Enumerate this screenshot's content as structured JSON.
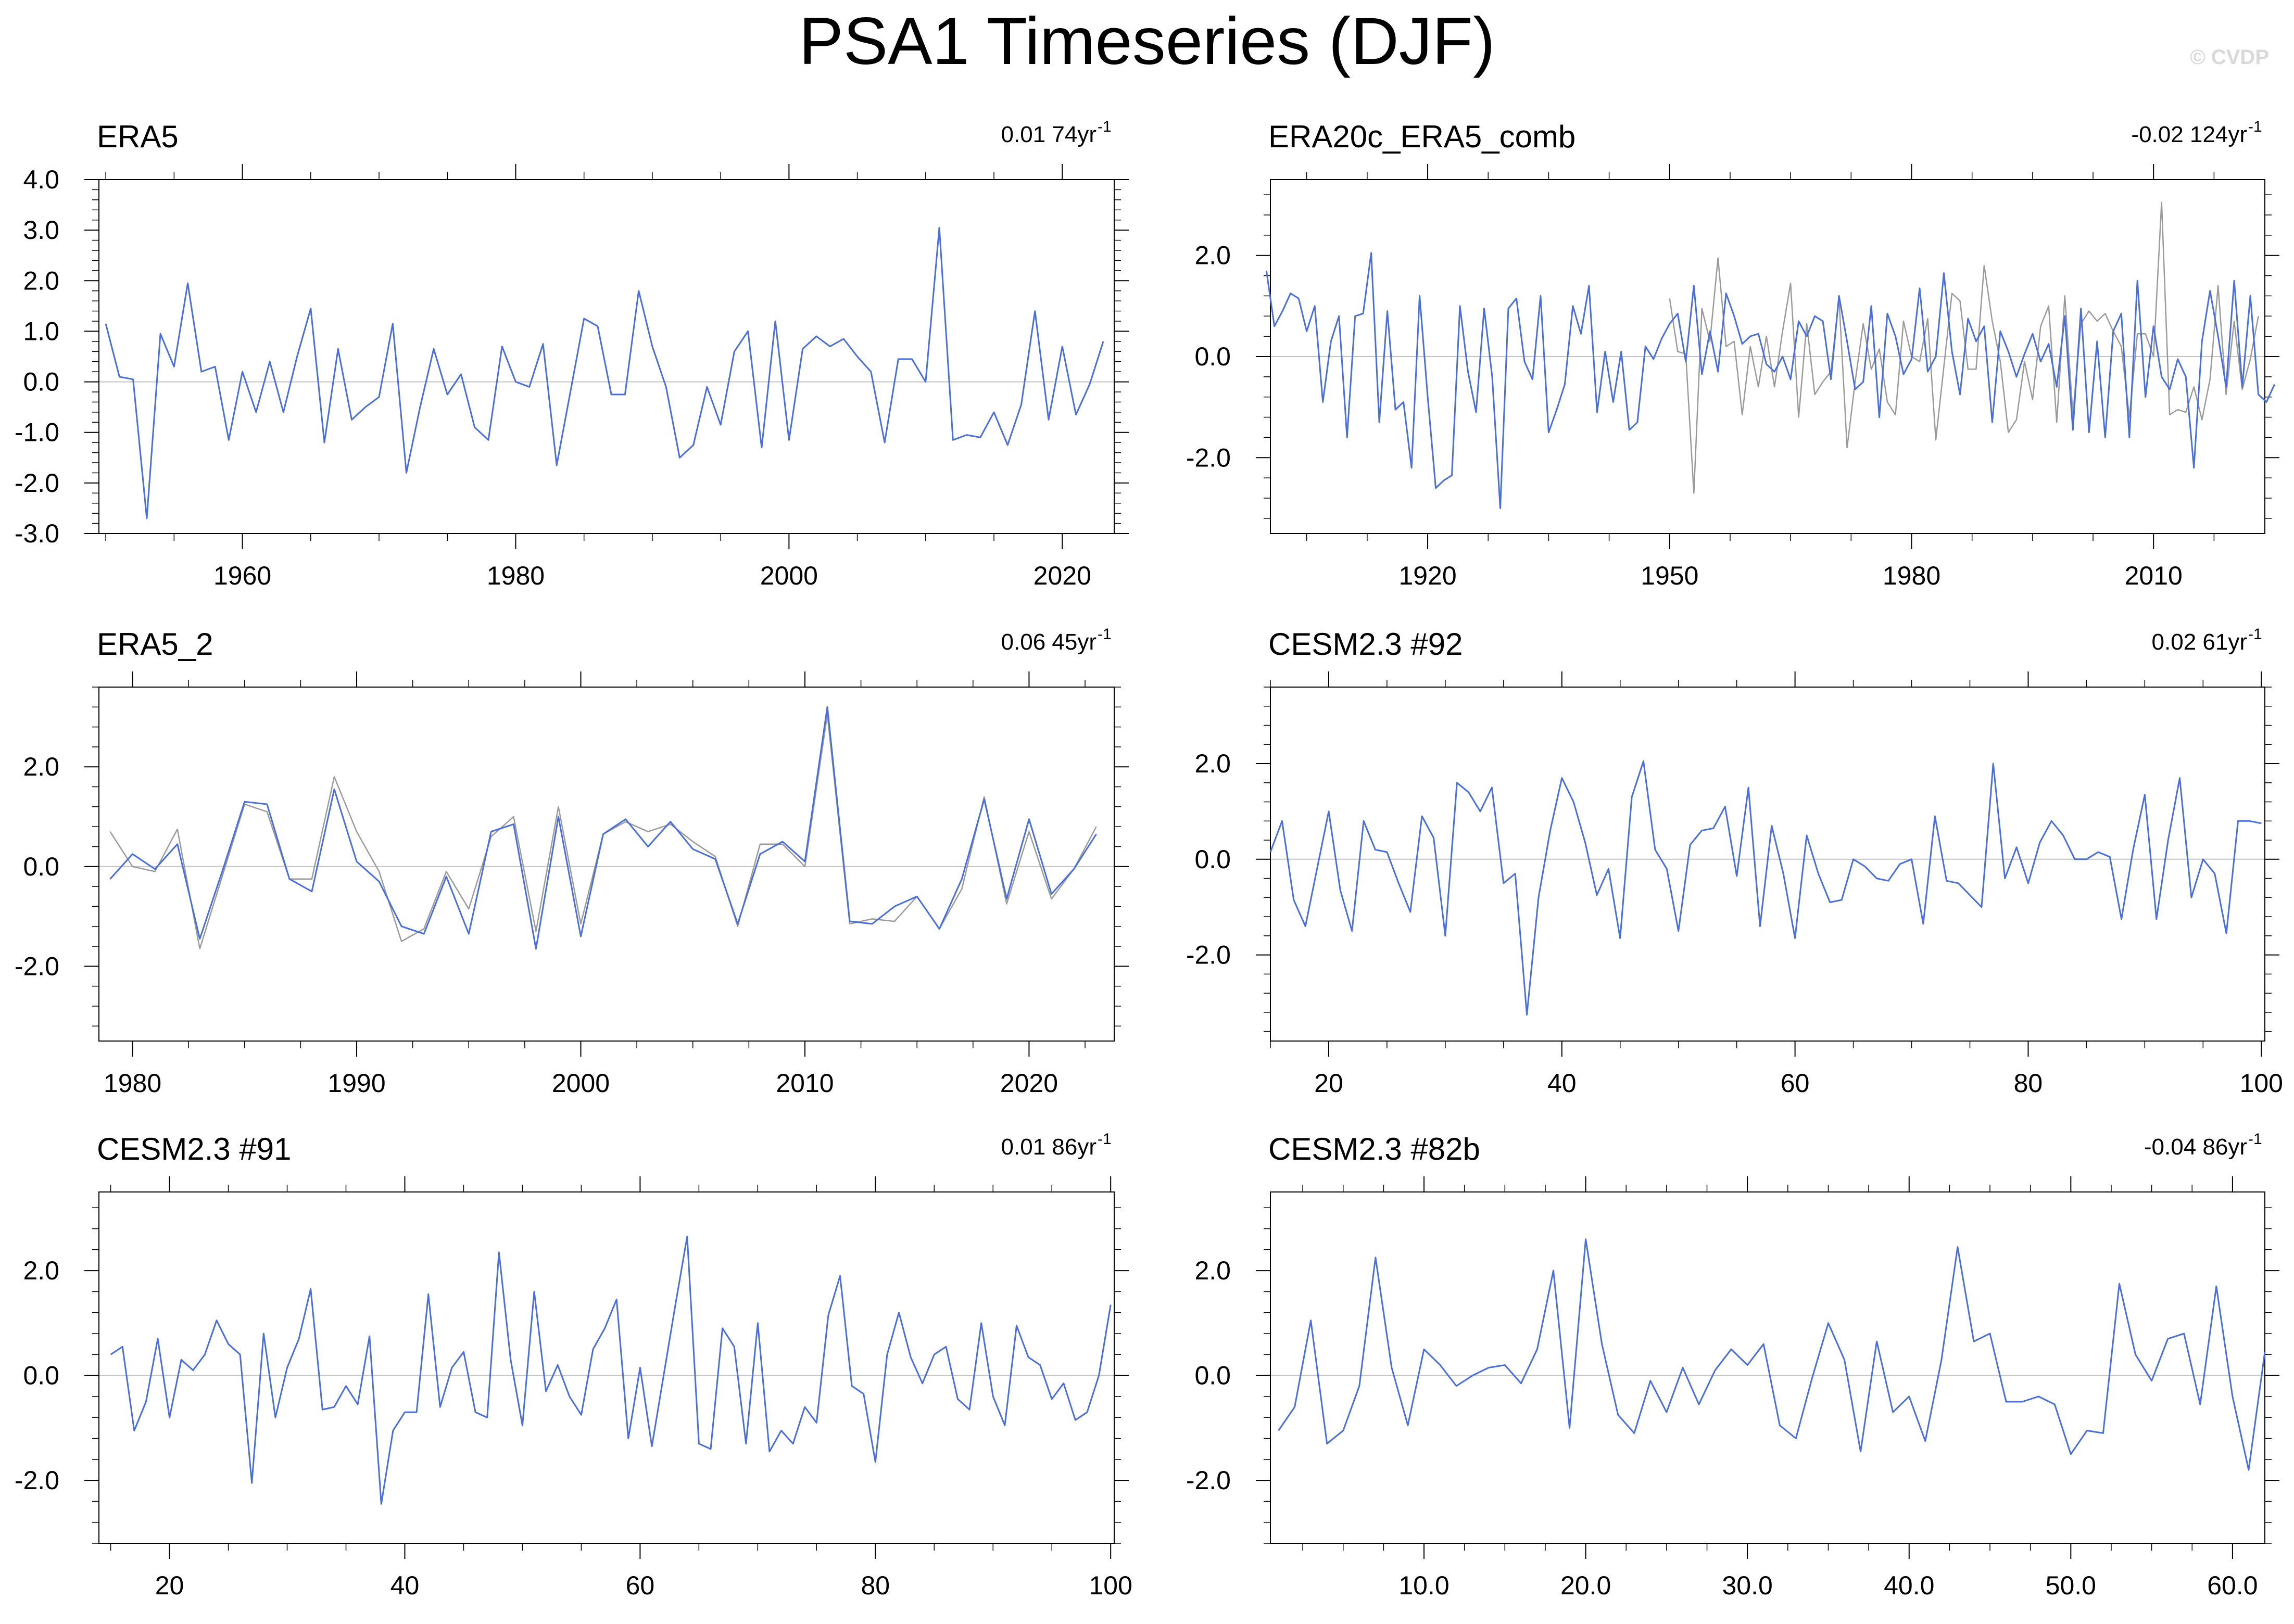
{
  "title": "PSA1 Timeseries (DJF)",
  "watermark": "© CVDP",
  "colors": {
    "primary": "#4b6fd8",
    "secondary": "#9a9a9a",
    "zero": "#c4c4c4",
    "axis": "#000000"
  },
  "chart_data": [
    {
      "type": "line",
      "name": "ERA5",
      "trend": "0.01 74yr",
      "trend_exp": "-1",
      "xlim": [
        1949.5,
        2023.8
      ],
      "ylim": [
        -3.0,
        4.0
      ],
      "xticks": [
        1960,
        1980,
        2000,
        2020
      ],
      "xtick_labels": [
        "1960",
        "1980",
        "2000",
        "2020"
      ],
      "yticks": [
        -3,
        -2,
        -1,
        0,
        1,
        2,
        3,
        4
      ],
      "ytick_labels": [
        "-3.0",
        "-2.0",
        "-1.0",
        "0.0",
        "1.0",
        "2.0",
        "3.0",
        "4.0"
      ],
      "series": [
        {
          "x0": 1950,
          "dx": 1,
          "color": "primary",
          "values": [
            1.15,
            0.1,
            0.05,
            -2.7,
            0.95,
            0.3,
            1.95,
            0.2,
            0.3,
            -1.15,
            0.2,
            -0.6,
            0.4,
            -0.6,
            0.5,
            1.45,
            -1.2,
            0.65,
            -0.75,
            -0.5,
            -0.3,
            1.15,
            -1.8,
            -0.5,
            0.65,
            -0.25,
            0.15,
            -0.9,
            -1.15,
            0.7,
            0.0,
            -0.1,
            0.75,
            -1.65,
            -0.2,
            1.25,
            1.1,
            -0.25,
            -0.25,
            1.8,
            0.7,
            -0.1,
            -1.5,
            -1.25,
            -0.1,
            -0.85,
            0.6,
            1.0,
            -1.3,
            1.2,
            -1.15,
            0.65,
            0.9,
            0.7,
            0.85,
            0.5,
            0.2,
            -1.2,
            0.45,
            0.45,
            0.0,
            3.05,
            -1.15,
            -1.05,
            -1.1,
            -0.6,
            -1.25,
            -0.45,
            1.4,
            -0.75,
            0.7,
            -0.65,
            -0.05,
            0.8
          ]
        }
      ]
    },
    {
      "type": "line",
      "name": "ERA20c_ERA5_comb",
      "trend": "-0.02 124yr",
      "trend_exp": "-1",
      "xlim": [
        1900.5,
        2023.8
      ],
      "ylim": [
        -3.5,
        3.5
      ],
      "xticks": [
        1920,
        1950,
        1980,
        2010
      ],
      "xtick_labels": [
        "1920",
        "1950",
        "1980",
        "2010"
      ],
      "yticks": [
        -2,
        0,
        2
      ],
      "ytick_labels": [
        "-2.0",
        "0.0",
        "2.0"
      ],
      "series": [
        {
          "x0": 1950,
          "dx": 1,
          "color": "secondary",
          "values": [
            1.15,
            0.1,
            0.05,
            -2.7,
            0.95,
            0.3,
            1.95,
            0.2,
            0.3,
            -1.15,
            0.2,
            -0.6,
            0.4,
            -0.6,
            0.5,
            1.45,
            -1.2,
            0.65,
            -0.75,
            -0.5,
            -0.3,
            1.15,
            -1.8,
            -0.5,
            0.65,
            -0.25,
            0.15,
            -0.9,
            -1.15,
            0.7,
            0.0,
            -0.1,
            0.75,
            -1.65,
            -0.2,
            1.25,
            1.1,
            -0.25,
            -0.25,
            1.8,
            0.7,
            -0.1,
            -1.5,
            -1.25,
            -0.1,
            -0.85,
            0.6,
            1.0,
            -1.3,
            1.2,
            -1.15,
            0.65,
            0.9,
            0.7,
            0.85,
            0.5,
            0.2,
            -1.2,
            0.45,
            0.45,
            0.0,
            3.05,
            -1.15,
            -1.05,
            -1.1,
            -0.6,
            -1.25,
            -0.45,
            1.4,
            -0.75,
            0.7,
            -0.65,
            -0.05,
            0.8
          ]
        },
        {
          "x0": 1900,
          "dx": 1,
          "color": "primary",
          "values": [
            1.7,
            0.6,
            0.9,
            1.25,
            1.15,
            0.5,
            1.0,
            -0.9,
            0.3,
            0.8,
            -1.6,
            0.8,
            0.85,
            2.05,
            -1.3,
            0.9,
            -1.05,
            -0.9,
            -2.2,
            1.2,
            -0.8,
            -2.6,
            -2.45,
            -2.35,
            1.0,
            -0.3,
            -1.1,
            0.95,
            -0.4,
            -3.0,
            0.95,
            1.15,
            -0.1,
            -0.45,
            1.2,
            -1.5,
            -1.05,
            -0.55,
            1.0,
            0.45,
            1.4,
            -1.1,
            0.1,
            -0.9,
            0.1,
            -1.45,
            -1.3,
            0.2,
            -0.05,
            0.35,
            0.65,
            0.85,
            -0.1,
            1.4,
            -0.35,
            0.5,
            -0.3,
            1.25,
            0.8,
            0.25,
            0.4,
            0.45,
            -0.15,
            -0.3,
            0.0,
            -0.45,
            0.7,
            0.4,
            0.8,
            0.7,
            -0.45,
            1.2,
            0.3,
            -0.65,
            -0.5,
            1.0,
            -1.2,
            0.85,
            0.4,
            -0.35,
            -0.05,
            1.35,
            -0.3,
            0.0,
            1.65,
            0.1,
            -0.75,
            0.75,
            0.3,
            0.6,
            -1.3,
            0.5,
            0.1,
            -0.4,
            0.05,
            0.45,
            -0.1,
            0.25,
            -0.6,
            0.8,
            -1.45,
            0.95,
            -1.5,
            0.3,
            -1.6,
            0.5,
            0.85,
            -1.6,
            1.5,
            -0.8,
            0.6,
            -0.4,
            -0.65,
            -0.05,
            -0.4,
            -2.2,
            0.3,
            1.3,
            0.4,
            -0.6,
            1.5,
            -0.6,
            1.2,
            -0.75,
            -0.9,
            -0.55
          ]
        }
      ]
    },
    {
      "type": "line",
      "name": "ERA5_2",
      "trend": "0.06 45yr",
      "trend_exp": "-1",
      "xlim": [
        1978.5,
        2023.8
      ],
      "ylim": [
        -3.5,
        3.6
      ],
      "xticks": [
        1980,
        1990,
        2000,
        2010,
        2020
      ],
      "xtick_labels": [
        "1980",
        "1990",
        "2000",
        "2010",
        "2020"
      ],
      "yticks": [
        -2,
        0,
        2
      ],
      "ytick_labels": [
        "-2.0",
        "0.0",
        "2.0"
      ],
      "series": [
        {
          "x0": 1979,
          "dx": 1,
          "color": "secondary",
          "values": [
            0.7,
            0.0,
            -0.1,
            0.75,
            -1.65,
            -0.2,
            1.25,
            1.1,
            -0.25,
            -0.25,
            1.8,
            0.7,
            -0.1,
            -1.5,
            -1.25,
            -0.1,
            -0.85,
            0.6,
            1.0,
            -1.3,
            1.2,
            -1.15,
            0.65,
            0.9,
            0.7,
            0.85,
            0.5,
            0.2,
            -1.2,
            0.45,
            0.45,
            0.0,
            3.05,
            -1.15,
            -1.05,
            -1.1,
            -0.6,
            -1.25,
            -0.45,
            1.4,
            -0.75,
            0.7,
            -0.65,
            -0.05,
            0.8
          ]
        },
        {
          "x0": 1979,
          "dx": 1,
          "color": "primary",
          "values": [
            -0.25,
            0.25,
            -0.05,
            0.45,
            -1.45,
            -0.1,
            1.3,
            1.25,
            -0.25,
            -0.5,
            1.55,
            0.1,
            -0.3,
            -1.2,
            -1.35,
            -0.2,
            -1.35,
            0.7,
            0.85,
            -1.65,
            1.0,
            -1.4,
            0.65,
            0.95,
            0.4,
            0.9,
            0.35,
            0.15,
            -1.15,
            0.25,
            0.5,
            0.1,
            3.2,
            -1.1,
            -1.15,
            -0.8,
            -0.6,
            -1.25,
            -0.25,
            1.35,
            -0.65,
            0.95,
            -0.55,
            -0.05,
            0.65
          ]
        }
      ]
    },
    {
      "type": "line",
      "name": "CESM2.3 #92",
      "trend": "0.02 61yr",
      "trend_exp": "-1",
      "xlim": [
        15,
        100.3
      ],
      "ylim": [
        -3.8,
        3.6
      ],
      "xticks": [
        20,
        40,
        60,
        80,
        100
      ],
      "xtick_labels": [
        "20",
        "40",
        "60",
        "80",
        "100"
      ],
      "yticks": [
        -2,
        0,
        2
      ],
      "ytick_labels": [
        "-2.0",
        "0.0",
        "2.0"
      ],
      "series": [
        {
          "x0": 15,
          "dx": 1,
          "color": "primary",
          "values": [
            0.15,
            0.8,
            -0.85,
            -1.4,
            -0.2,
            1.0,
            -0.65,
            -1.5,
            0.8,
            0.2,
            0.15,
            -0.5,
            -1.1,
            0.9,
            0.45,
            -1.6,
            1.6,
            1.4,
            1.0,
            1.5,
            -0.5,
            -0.3,
            -3.25,
            -0.8,
            0.6,
            1.7,
            1.2,
            0.35,
            -0.75,
            -0.2,
            -1.65,
            1.3,
            2.05,
            0.2,
            -0.2,
            -1.5,
            0.3,
            0.6,
            0.65,
            1.1,
            -0.35,
            1.5,
            -1.4,
            0.7,
            -0.3,
            -1.65,
            0.5,
            -0.3,
            -0.9,
            -0.85,
            0.0,
            -0.15,
            -0.4,
            -0.45,
            -0.1,
            0.0,
            -1.35,
            0.9,
            -0.45,
            -0.5,
            -0.75,
            -1.0,
            2.0,
            -0.4,
            0.25,
            -0.5,
            0.35,
            0.8,
            0.5,
            0.0,
            0.0,
            0.15,
            0.05,
            -1.25,
            0.2,
            1.35,
            -1.25,
            0.4,
            1.7,
            -0.8,
            0.0,
            -0.3,
            -1.55,
            0.8,
            0.8,
            0.75
          ]
        }
      ]
    },
    {
      "type": "line",
      "name": "CESM2.3 #91",
      "trend": "0.01 86yr",
      "trend_exp": "-1",
      "xlim": [
        14,
        100.3
      ],
      "ylim": [
        -3.2,
        3.5
      ],
      "xticks": [
        20,
        40,
        60,
        80,
        100
      ],
      "xtick_labels": [
        "20",
        "40",
        "60",
        "80",
        "100"
      ],
      "yticks": [
        -2,
        0,
        2
      ],
      "ytick_labels": [
        "-2.0",
        "0.0",
        "2.0"
      ],
      "series": [
        {
          "x0": 15,
          "dx": 1,
          "color": "primary",
          "values": [
            0.4,
            0.55,
            -1.05,
            -0.5,
            0.7,
            -0.8,
            0.3,
            0.1,
            0.4,
            1.05,
            0.6,
            0.4,
            -2.05,
            0.8,
            -0.8,
            0.15,
            0.7,
            1.65,
            -0.65,
            -0.6,
            -0.2,
            -0.55,
            0.75,
            -2.45,
            -1.05,
            -0.7,
            -0.7,
            1.55,
            -0.6,
            0.15,
            0.45,
            -0.7,
            -0.8,
            2.35,
            0.3,
            -0.95,
            1.6,
            -0.3,
            0.2,
            -0.4,
            -0.75,
            0.5,
            0.9,
            1.45,
            -1.2,
            0.15,
            -1.35,
            0.0,
            1.35,
            2.65,
            -1.3,
            -1.4,
            0.9,
            0.55,
            -1.3,
            1.0,
            -1.45,
            -1.05,
            -1.3,
            -0.6,
            -0.9,
            1.15,
            1.9,
            -0.2,
            -0.35,
            -1.65,
            0.4,
            1.2,
            0.35,
            -0.15,
            0.4,
            0.55,
            -0.45,
            -0.65,
            1.0,
            -0.4,
            -0.95,
            0.95,
            0.35,
            0.2,
            -0.45,
            -0.15,
            -0.85,
            -0.7,
            0.0,
            1.35
          ]
        }
      ]
    },
    {
      "type": "line",
      "name": "CESM2.3 #82b",
      "trend": "-0.04 86yr",
      "trend_exp": "-1",
      "xlim": [
        0.5,
        62
      ],
      "ylim": [
        -3.2,
        3.5
      ],
      "xticks": [
        10,
        20,
        30,
        40,
        50,
        60
      ],
      "xtick_labels": [
        "10.0",
        "20.0",
        "30.0",
        "40.0",
        "50.0",
        "60.0"
      ],
      "yticks": [
        -2,
        0,
        2
      ],
      "ytick_labels": [
        "-2.0",
        "0.0",
        "2.0"
      ],
      "series": [
        {
          "x0": 1,
          "dx": 1,
          "color": "primary",
          "values": [
            -1.05,
            -0.6,
            1.05,
            -1.3,
            -1.05,
            -0.2,
            2.25,
            0.15,
            -0.95,
            0.5,
            0.2,
            -0.2,
            0.0,
            0.15,
            0.2,
            -0.15,
            0.5,
            2.0,
            -1.0,
            2.6,
            0.6,
            -0.75,
            -1.1,
            -0.1,
            -0.7,
            0.15,
            -0.55,
            0.1,
            0.5,
            0.2,
            0.6,
            -0.95,
            -1.2,
            -0.05,
            1.0,
            0.3,
            -1.45,
            0.65,
            -0.7,
            -0.4,
            -1.25,
            0.3,
            2.45,
            0.65,
            0.8,
            -0.5,
            -0.5,
            -0.4,
            -0.55,
            -1.5,
            -1.05,
            -1.1,
            1.75,
            0.4,
            -0.1,
            0.7,
            0.8,
            -0.55,
            1.7,
            -0.4,
            -1.8,
            0.45
          ]
        }
      ]
    }
  ]
}
